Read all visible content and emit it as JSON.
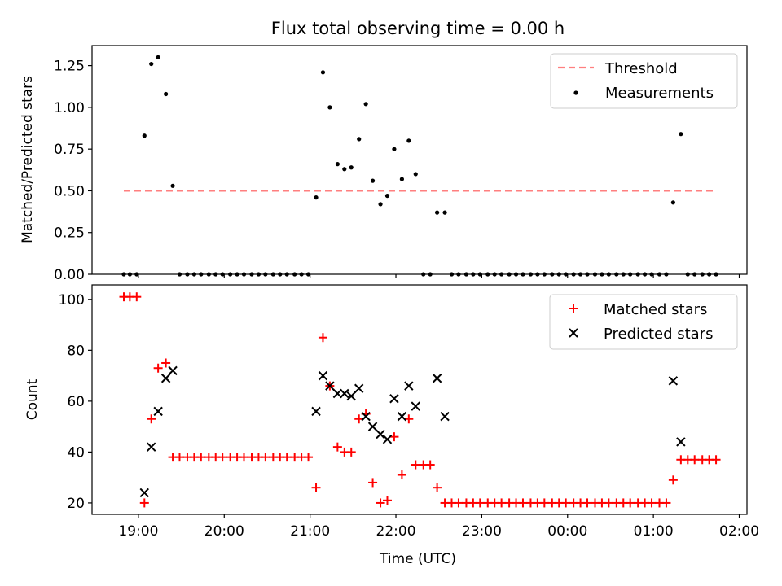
{
  "chart_data": [
    {
      "type": "scatter",
      "title": "Flux total observing time = 0.00 h",
      "xlabel": "",
      "ylabel": "Matched/Predicted stars",
      "ylim": [
        0,
        1.37
      ],
      "yticks": [
        0.0,
        0.25,
        0.5,
        0.75,
        1.0,
        1.25
      ],
      "ytick_labels": [
        "0.00",
        "0.25",
        "0.50",
        "0.75",
        "1.00",
        "1.25"
      ],
      "legend_position": "top-right",
      "threshold": {
        "name": "Threshold",
        "value": 0.5,
        "x_start": 18.83,
        "x_end": 25.72,
        "color": "#ff7f7f"
      },
      "series": [
        {
          "name": "Measurements",
          "color": "#000000",
          "points": [
            [
              18.83,
              0.0
            ],
            [
              18.9,
              0.0
            ],
            [
              18.98,
              0.0
            ],
            [
              19.07,
              0.83
            ],
            [
              19.15,
              1.26
            ],
            [
              19.23,
              1.3
            ],
            [
              19.32,
              1.08
            ],
            [
              19.4,
              0.53
            ],
            [
              19.48,
              0.0
            ],
            [
              19.57,
              0.0
            ],
            [
              19.65,
              0.0
            ],
            [
              19.73,
              0.0
            ],
            [
              19.82,
              0.0
            ],
            [
              19.9,
              0.0
            ],
            [
              19.98,
              0.0
            ],
            [
              20.07,
              0.0
            ],
            [
              20.15,
              0.0
            ],
            [
              20.23,
              0.0
            ],
            [
              20.32,
              0.0
            ],
            [
              20.4,
              0.0
            ],
            [
              20.48,
              0.0
            ],
            [
              20.57,
              0.0
            ],
            [
              20.65,
              0.0
            ],
            [
              20.73,
              0.0
            ],
            [
              20.82,
              0.0
            ],
            [
              20.9,
              0.0
            ],
            [
              20.98,
              0.0
            ],
            [
              21.07,
              0.46
            ],
            [
              21.15,
              1.21
            ],
            [
              21.23,
              1.0
            ],
            [
              21.32,
              0.66
            ],
            [
              21.4,
              0.63
            ],
            [
              21.48,
              0.64
            ],
            [
              21.57,
              0.81
            ],
            [
              21.65,
              1.02
            ],
            [
              21.73,
              0.56
            ],
            [
              21.82,
              0.42
            ],
            [
              21.9,
              0.47
            ],
            [
              21.98,
              0.75
            ],
            [
              22.07,
              0.57
            ],
            [
              22.15,
              0.8
            ],
            [
              22.23,
              0.6
            ],
            [
              22.32,
              0.0
            ],
            [
              22.4,
              0.0
            ],
            [
              22.48,
              0.37
            ],
            [
              22.57,
              0.37
            ],
            [
              22.65,
              0.0
            ],
            [
              22.73,
              0.0
            ],
            [
              22.82,
              0.0
            ],
            [
              22.9,
              0.0
            ],
            [
              22.98,
              0.0
            ],
            [
              23.07,
              0.0
            ],
            [
              23.15,
              0.0
            ],
            [
              23.23,
              0.0
            ],
            [
              23.32,
              0.0
            ],
            [
              23.4,
              0.0
            ],
            [
              23.48,
              0.0
            ],
            [
              23.57,
              0.0
            ],
            [
              23.65,
              0.0
            ],
            [
              23.73,
              0.0
            ],
            [
              23.82,
              0.0
            ],
            [
              23.9,
              0.0
            ],
            [
              23.98,
              0.0
            ],
            [
              24.07,
              0.0
            ],
            [
              24.15,
              0.0
            ],
            [
              24.23,
              0.0
            ],
            [
              24.32,
              0.0
            ],
            [
              24.4,
              0.0
            ],
            [
              24.48,
              0.0
            ],
            [
              24.57,
              0.0
            ],
            [
              24.65,
              0.0
            ],
            [
              24.73,
              0.0
            ],
            [
              24.82,
              0.0
            ],
            [
              24.9,
              0.0
            ],
            [
              24.98,
              0.0
            ],
            [
              25.07,
              0.0
            ],
            [
              25.15,
              0.0
            ],
            [
              25.23,
              0.43
            ],
            [
              25.32,
              0.84
            ],
            [
              25.4,
              0.0
            ],
            [
              25.48,
              0.0
            ],
            [
              25.57,
              0.0
            ],
            [
              25.65,
              0.0
            ],
            [
              25.73,
              0.0
            ]
          ]
        }
      ]
    },
    {
      "type": "scatter",
      "title": "",
      "xlabel": "Time (UTC)",
      "ylabel": "Count",
      "xlim": [
        18.46,
        26.09
      ],
      "ylim": [
        15.5,
        105.7
      ],
      "yticks": [
        20,
        40,
        60,
        80,
        100
      ],
      "ytick_labels": [
        "20",
        "40",
        "60",
        "80",
        "100"
      ],
      "xticks": [
        19,
        20,
        21,
        22,
        23,
        24,
        25,
        26
      ],
      "xtick_labels": [
        "19:00",
        "20:00",
        "21:00",
        "22:00",
        "23:00",
        "00:00",
        "01:00",
        "02:00"
      ],
      "legend_position": "top-right",
      "series": [
        {
          "name": "Matched stars",
          "marker": "plus",
          "color": "#ff0000",
          "points": [
            [
              18.83,
              101
            ],
            [
              18.9,
              101
            ],
            [
              18.98,
              101
            ],
            [
              19.07,
              20
            ],
            [
              19.15,
              53
            ],
            [
              19.23,
              73
            ],
            [
              19.32,
              75
            ],
            [
              19.4,
              38
            ],
            [
              19.48,
              38
            ],
            [
              19.57,
              38
            ],
            [
              19.65,
              38
            ],
            [
              19.73,
              38
            ],
            [
              19.82,
              38
            ],
            [
              19.9,
              38
            ],
            [
              19.98,
              38
            ],
            [
              20.07,
              38
            ],
            [
              20.15,
              38
            ],
            [
              20.23,
              38
            ],
            [
              20.32,
              38
            ],
            [
              20.4,
              38
            ],
            [
              20.48,
              38
            ],
            [
              20.57,
              38
            ],
            [
              20.65,
              38
            ],
            [
              20.73,
              38
            ],
            [
              20.82,
              38
            ],
            [
              20.9,
              38
            ],
            [
              20.98,
              38
            ],
            [
              21.07,
              26
            ],
            [
              21.15,
              85
            ],
            [
              21.23,
              66
            ],
            [
              21.32,
              42
            ],
            [
              21.4,
              40
            ],
            [
              21.48,
              40
            ],
            [
              21.57,
              53
            ],
            [
              21.65,
              55
            ],
            [
              21.73,
              28
            ],
            [
              21.82,
              20
            ],
            [
              21.9,
              21
            ],
            [
              21.98,
              46
            ],
            [
              22.07,
              31
            ],
            [
              22.15,
              53
            ],
            [
              22.23,
              35
            ],
            [
              22.32,
              35
            ],
            [
              22.4,
              35
            ],
            [
              22.48,
              26
            ],
            [
              22.57,
              20
            ],
            [
              22.65,
              20
            ],
            [
              22.73,
              20
            ],
            [
              22.82,
              20
            ],
            [
              22.9,
              20
            ],
            [
              22.98,
              20
            ],
            [
              23.07,
              20
            ],
            [
              23.15,
              20
            ],
            [
              23.23,
              20
            ],
            [
              23.32,
              20
            ],
            [
              23.4,
              20
            ],
            [
              23.48,
              20
            ],
            [
              23.57,
              20
            ],
            [
              23.65,
              20
            ],
            [
              23.73,
              20
            ],
            [
              23.82,
              20
            ],
            [
              23.9,
              20
            ],
            [
              23.98,
              20
            ],
            [
              24.07,
              20
            ],
            [
              24.15,
              20
            ],
            [
              24.23,
              20
            ],
            [
              24.32,
              20
            ],
            [
              24.4,
              20
            ],
            [
              24.48,
              20
            ],
            [
              24.57,
              20
            ],
            [
              24.65,
              20
            ],
            [
              24.73,
              20
            ],
            [
              24.82,
              20
            ],
            [
              24.9,
              20
            ],
            [
              24.98,
              20
            ],
            [
              25.07,
              20
            ],
            [
              25.15,
              20
            ],
            [
              25.23,
              29
            ],
            [
              25.32,
              37
            ],
            [
              25.4,
              37
            ],
            [
              25.48,
              37
            ],
            [
              25.57,
              37
            ],
            [
              25.65,
              37
            ],
            [
              25.73,
              37
            ]
          ]
        },
        {
          "name": "Predicted stars",
          "marker": "x",
          "color": "#000000",
          "points": [
            [
              19.07,
              24
            ],
            [
              19.15,
              42
            ],
            [
              19.23,
              56
            ],
            [
              19.32,
              69
            ],
            [
              19.4,
              72
            ],
            [
              21.07,
              56
            ],
            [
              21.15,
              70
            ],
            [
              21.23,
              66
            ],
            [
              21.32,
              63
            ],
            [
              21.4,
              63
            ],
            [
              21.48,
              62
            ],
            [
              21.57,
              65
            ],
            [
              21.65,
              54
            ],
            [
              21.73,
              50
            ],
            [
              21.82,
              47
            ],
            [
              21.9,
              45
            ],
            [
              21.98,
              61
            ],
            [
              22.07,
              54
            ],
            [
              22.15,
              66
            ],
            [
              22.23,
              58
            ],
            [
              22.48,
              69
            ],
            [
              22.57,
              54
            ],
            [
              25.23,
              68
            ],
            [
              25.32,
              44
            ]
          ]
        }
      ]
    }
  ]
}
